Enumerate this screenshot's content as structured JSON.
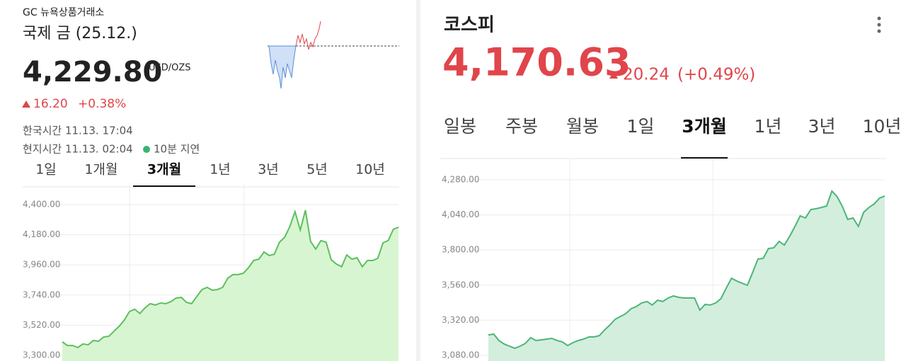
{
  "left": {
    "exchange": "GC 뉴욕상품거래소",
    "name": "국제 금 (25.12.)",
    "price": "4,229.80",
    "unit": "USD/OZS",
    "change": "16.20",
    "change_pct": "+0.38%",
    "kr_time": "한국시간 11.13. 17:04",
    "local_time": "현지시간 11.13. 02:04",
    "delay": "10분 지연",
    "tabs": [
      "1일",
      "1개월",
      "3개월",
      "1년",
      "3년",
      "5년",
      "10년"
    ],
    "active_tab": 2
  },
  "right": {
    "name": "코스피",
    "price": "4,170.63",
    "change": "20.24",
    "change_pct": "(+0.49%)",
    "tabs": [
      "일봉",
      "주봉",
      "월봉",
      "1일",
      "3개월",
      "1년",
      "3년",
      "10년"
    ],
    "active_tab": 4
  },
  "chart_data": [
    {
      "type": "area",
      "color": "#5cc05c",
      "ylim": [
        3300,
        4400
      ],
      "yticks": [
        {
          "value": 3300,
          "label": "3,300.00"
        },
        {
          "value": 3520,
          "label": "3,520.00"
        },
        {
          "value": 3740,
          "label": "3,740.00"
        },
        {
          "value": 3960,
          "label": "3,960.00"
        },
        {
          "value": 4180,
          "label": "4,180.00"
        },
        {
          "value": 4400,
          "label": "4,400.00"
        }
      ],
      "grid": true,
      "values": [
        3398,
        3372,
        3372,
        3357,
        3383,
        3377,
        3408,
        3403,
        3434,
        3439,
        3476,
        3512,
        3558,
        3620,
        3636,
        3605,
        3646,
        3677,
        3667,
        3682,
        3677,
        3692,
        3718,
        3723,
        3687,
        3677,
        3729,
        3780,
        3796,
        3775,
        3780,
        3796,
        3863,
        3889,
        3889,
        3899,
        3940,
        3992,
        4002,
        4054,
        4028,
        4038,
        4126,
        4162,
        4240,
        4348,
        4214,
        4359,
        4131,
        4075,
        4137,
        4126,
        3997,
        3966,
        3946,
        4033,
        4002,
        4012,
        3946,
        3992,
        3992,
        4008,
        4121,
        4137,
        4219,
        4235
      ]
    },
    {
      "type": "area",
      "color": "#4cb578",
      "ylim": [
        3080,
        4280
      ],
      "yticks": [
        {
          "value": 3080,
          "label": "3,080.00"
        },
        {
          "value": 3320,
          "label": "3,320.00"
        },
        {
          "value": 3560,
          "label": "3,560.00"
        },
        {
          "value": 3800,
          "label": "3,800.00"
        },
        {
          "value": 4040,
          "label": "4,040.00"
        },
        {
          "value": 4280,
          "label": "4,280.00"
        }
      ],
      "grid": true,
      "values": [
        3220,
        3225,
        3181,
        3157,
        3143,
        3128,
        3143,
        3162,
        3201,
        3181,
        3186,
        3191,
        3196,
        3181,
        3172,
        3147,
        3167,
        3181,
        3191,
        3206,
        3206,
        3215,
        3254,
        3288,
        3327,
        3346,
        3365,
        3399,
        3414,
        3438,
        3448,
        3424,
        3457,
        3448,
        3472,
        3486,
        3477,
        3472,
        3472,
        3472,
        3389,
        3428,
        3424,
        3438,
        3467,
        3539,
        3607,
        3588,
        3573,
        3559,
        3646,
        3738,
        3743,
        3810,
        3815,
        3859,
        3834,
        3893,
        3961,
        4033,
        4019,
        4077,
        4082,
        4091,
        4101,
        4203,
        4164,
        4096,
        4009,
        4019,
        3961,
        4057,
        4091,
        4115,
        4154,
        4169
      ]
    }
  ]
}
